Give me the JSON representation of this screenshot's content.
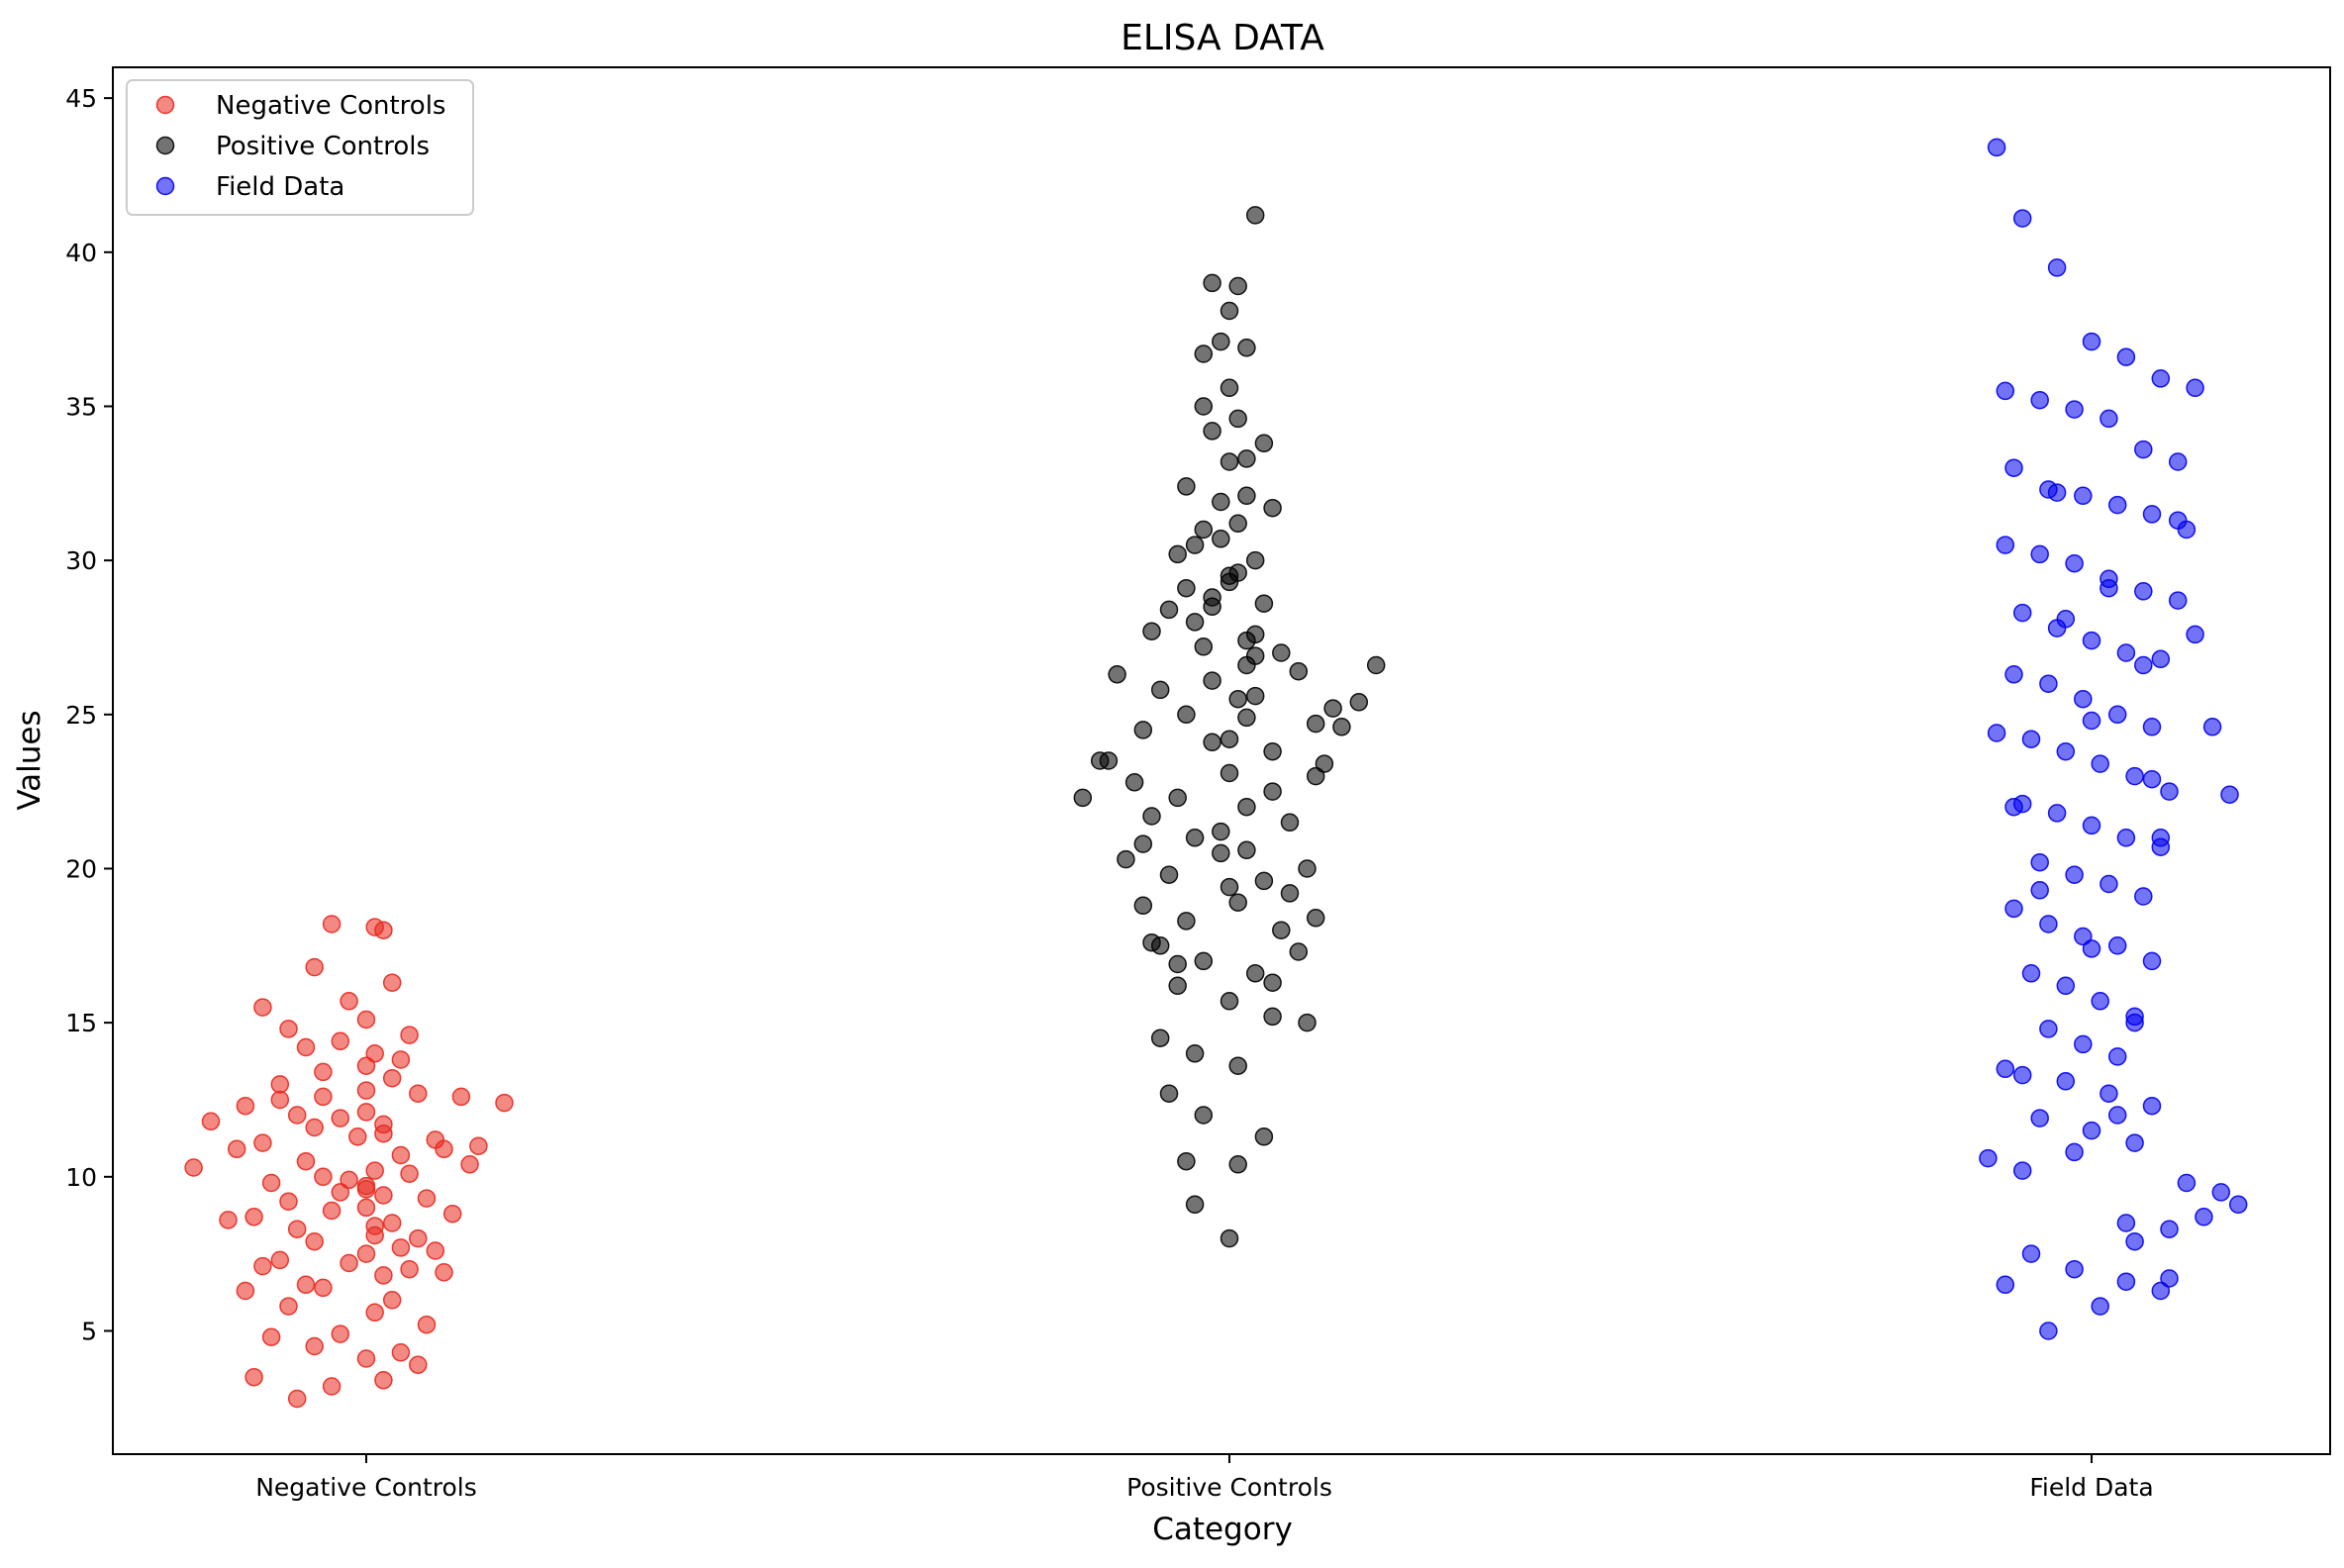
{
  "chart_data": {
    "type": "scatter",
    "title": "ELISA DATA",
    "xlabel": "Category",
    "ylabel": "Values",
    "categories": [
      "Negative Controls",
      "Positive Controls",
      "Field Data"
    ],
    "ylim": [
      1,
      46
    ],
    "yticks": [
      5,
      10,
      15,
      20,
      25,
      30,
      35,
      40,
      45
    ],
    "grid": false,
    "legend_position": "top-left",
    "point_alpha": 0.55,
    "series": [
      {
        "name": "Negative Controls",
        "color": "#e8281e",
        "category_index": 0,
        "x_offset": [
          -0.18,
          -0.14,
          -0.1,
          -0.05,
          0.0,
          0.06,
          0.11,
          0.16,
          -0.2,
          -0.12,
          -0.06,
          0.02,
          0.08,
          0.13,
          -0.15,
          -0.07,
          0.04,
          0.09,
          -0.11,
          -0.03,
          0.05,
          0.12,
          -0.09,
          0.0,
          0.07,
          -0.13,
          -0.04,
          0.03,
          0.1,
          -0.08,
          0.01,
          0.06,
          -0.16,
          -0.06,
          0.04,
          -0.1,
          0.0,
          0.08,
          -0.12,
          -0.02,
          0.05,
          -0.07,
          0.02,
          0.09,
          -0.14,
          -0.05,
          0.03,
          -0.09,
          0.01,
          0.07,
          -0.11,
          -0.03,
          0.04,
          -0.06,
          0.0,
          0.06,
          -0.13,
          -0.04,
          0.02,
          -0.08,
          0.03,
          -0.1,
          0.0,
          -0.05,
          0.04,
          -0.07,
          0.01,
          -0.03,
          0.05,
          -0.09,
          0.0,
          -0.12,
          -0.02,
          0.03,
          -0.06,
          0.02,
          -0.04,
          0.01,
          -0.08,
          0.0,
          -0.03,
          0.02,
          -0.05,
          0.0,
          -0.02,
          0.01,
          0.0,
          -0.01,
          0.02,
          0.01
        ],
        "values": [
          11.8,
          12.3,
          12.5,
          12.6,
          12.8,
          12.7,
          12.6,
          12.4,
          10.3,
          11.1,
          11.6,
          11.4,
          11.2,
          11.0,
          10.9,
          10.5,
          10.7,
          10.9,
          9.8,
          9.5,
          10.1,
          10.4,
          9.2,
          9.0,
          9.3,
          8.7,
          8.9,
          8.5,
          8.8,
          8.3,
          8.1,
          8.0,
          8.6,
          7.9,
          7.7,
          7.3,
          7.5,
          7.6,
          7.1,
          7.2,
          7.0,
          6.5,
          6.8,
          6.9,
          6.3,
          6.4,
          6.0,
          5.8,
          5.6,
          5.2,
          4.8,
          4.9,
          4.3,
          4.5,
          4.1,
          3.9,
          3.5,
          3.2,
          3.4,
          2.8,
          13.2,
          13.0,
          13.6,
          13.4,
          13.8,
          14.2,
          14.0,
          14.4,
          14.6,
          14.8,
          15.1,
          15.5,
          15.7,
          16.3,
          16.8,
          18.0,
          18.2,
          18.1,
          12.0,
          12.1,
          11.9,
          11.7,
          10.0,
          9.7,
          9.9,
          10.2,
          9.6,
          11.3,
          9.4,
          8.4
        ]
      },
      {
        "name": "Positive Controls",
        "color": "#000000",
        "category_index": 1,
        "x_offset": [
          -0.15,
          -0.1,
          -0.05,
          0.0,
          0.05,
          0.1,
          0.15,
          -0.13,
          -0.08,
          -0.02,
          0.03,
          0.08,
          0.12,
          -0.11,
          -0.06,
          0.0,
          0.05,
          0.1,
          -0.09,
          -0.04,
          0.02,
          0.07,
          -0.12,
          -0.07,
          -0.01,
          0.04,
          0.09,
          -0.1,
          -0.05,
          0.01,
          0.06,
          -0.08,
          -0.03,
          0.03,
          0.08,
          -0.06,
          0.0,
          0.05,
          -0.09,
          -0.04,
          0.02,
          0.06,
          -0.07,
          -0.02,
          0.03,
          -0.05,
          0.0,
          0.04,
          -0.06,
          -0.01,
          0.03,
          -0.04,
          0.01,
          0.05,
          -0.03,
          0.02,
          -0.05,
          0.0,
          0.04,
          -0.02,
          0.01,
          -0.03,
          0.02,
          -0.01,
          0.0,
          0.01,
          -0.02,
          0.03,
          -0.03,
          0.0,
          0.02,
          -0.01,
          0.01,
          0.0,
          -0.02,
          0.02,
          0.17,
          0.13,
          0.11,
          -0.14,
          -0.17,
          -0.1,
          0.07,
          0.1,
          -0.09,
          -0.06,
          0.05,
          0.09,
          -0.08,
          -0.04,
          0.01,
          -0.07,
          -0.03,
          0.04,
          -0.05,
          0.01,
          -0.04,
          0.0,
          0.03,
          -0.02,
          0.02,
          -0.01,
          0.0,
          0.01,
          -0.03,
          0.02
        ],
        "values": [
          23.5,
          24.5,
          25.0,
          24.2,
          23.8,
          24.7,
          25.4,
          26.3,
          25.8,
          26.1,
          25.6,
          26.4,
          25.2,
          22.8,
          22.3,
          23.1,
          22.5,
          23.0,
          21.7,
          21.0,
          20.6,
          21.5,
          20.3,
          19.8,
          20.5,
          19.6,
          20.0,
          18.8,
          18.3,
          18.9,
          18.0,
          17.5,
          17.0,
          16.6,
          17.3,
          16.2,
          15.7,
          15.2,
          27.7,
          28.0,
          27.4,
          27.0,
          28.4,
          28.8,
          27.6,
          29.1,
          29.5,
          28.6,
          30.2,
          30.7,
          30.0,
          30.5,
          31.2,
          31.7,
          31.0,
          32.1,
          32.4,
          33.2,
          33.8,
          34.2,
          34.6,
          35.0,
          36.9,
          37.1,
          38.1,
          38.9,
          39.0,
          41.2,
          36.7,
          35.6,
          33.3,
          31.9,
          29.6,
          29.3,
          28.5,
          26.6,
          26.6,
          24.6,
          23.4,
          23.5,
          22.3,
          20.8,
          19.2,
          18.4,
          17.6,
          16.9,
          16.3,
          15.0,
          14.5,
          14.0,
          13.6,
          12.7,
          12.0,
          11.3,
          10.5,
          10.4,
          9.1,
          8.0,
          26.9,
          24.1,
          22.0,
          21.2,
          19.4,
          25.5,
          27.2,
          24.9
        ]
      },
      {
        "name": "Field Data",
        "color": "#0000ee",
        "category_index": 2,
        "x_offset": [
          -0.11,
          -0.08,
          -0.04,
          0.0,
          0.04,
          0.08,
          0.12,
          -0.1,
          -0.06,
          -0.02,
          0.02,
          0.06,
          0.1,
          -0.09,
          -0.05,
          -0.01,
          0.03,
          0.07,
          0.11,
          -0.1,
          -0.06,
          -0.02,
          0.02,
          0.06,
          0.1,
          -0.08,
          -0.04,
          0.0,
          0.04,
          0.08,
          -0.09,
          -0.05,
          -0.01,
          0.03,
          0.07,
          -0.07,
          -0.03,
          0.01,
          0.05,
          0.09,
          -0.08,
          -0.04,
          0.0,
          0.04,
          0.08,
          -0.06,
          -0.02,
          0.02,
          0.06,
          -0.09,
          -0.05,
          -0.01,
          0.03,
          0.07,
          -0.07,
          -0.03,
          0.01,
          0.05,
          -0.05,
          -0.01,
          0.03,
          -0.1,
          -0.03,
          0.02,
          0.07,
          -0.06,
          0.0,
          0.05,
          -0.12,
          -0.08,
          0.11,
          0.15,
          0.17,
          0.13,
          0.09,
          0.05,
          -0.07,
          -0.02,
          0.04,
          0.08,
          0.01,
          -0.05,
          0.0,
          0.07,
          -0.09,
          -0.11,
          0.14,
          0.16,
          0.12,
          -0.03,
          0.06,
          0.1,
          -0.04,
          0.02,
          0.08,
          -0.06,
          0.0,
          0.05,
          -0.08,
          0.03,
          -0.02,
          0.04,
          -0.1,
          0.09
        ],
        "values": [
          43.4,
          41.1,
          39.5,
          37.1,
          36.6,
          35.9,
          35.6,
          35.5,
          35.2,
          34.9,
          34.6,
          33.6,
          33.2,
          33.0,
          32.3,
          32.1,
          31.8,
          31.5,
          31.0,
          30.5,
          30.2,
          29.9,
          29.4,
          29.0,
          28.7,
          28.3,
          27.8,
          27.4,
          27.0,
          26.8,
          26.3,
          26.0,
          25.5,
          25.0,
          24.6,
          24.2,
          23.8,
          23.4,
          23.0,
          22.5,
          22.1,
          21.8,
          21.4,
          21.0,
          20.7,
          20.2,
          19.8,
          19.5,
          19.1,
          18.7,
          18.2,
          17.8,
          17.5,
          17.0,
          16.6,
          16.2,
          15.7,
          15.2,
          14.8,
          14.3,
          13.9,
          13.5,
          13.1,
          12.7,
          12.3,
          11.9,
          11.5,
          11.1,
          10.6,
          10.2,
          9.8,
          9.5,
          9.1,
          8.7,
          8.3,
          7.9,
          7.5,
          7.0,
          6.6,
          6.3,
          5.8,
          5.0,
          24.8,
          22.9,
          22.0,
          24.4,
          24.6,
          22.4,
          27.6,
          28.1,
          26.6,
          31.3,
          32.2,
          29.1,
          21.0,
          19.3,
          17.4,
          15.0,
          13.3,
          12.0,
          10.8,
          8.5,
          6.5,
          6.7
        ]
      }
    ]
  }
}
